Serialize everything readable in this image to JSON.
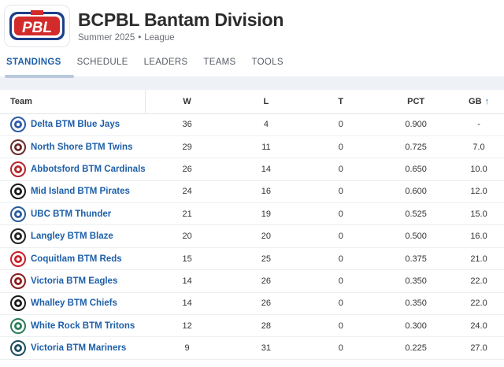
{
  "header": {
    "logo_text": "PBL",
    "title": "BCPBL Bantam Division",
    "season": "Summer 2025",
    "separator": "•",
    "type": "League"
  },
  "tabs": [
    {
      "label": "STANDINGS",
      "active": true
    },
    {
      "label": "SCHEDULE"
    },
    {
      "label": "LEADERS"
    },
    {
      "label": "TEAMS"
    },
    {
      "label": "TOOLS"
    }
  ],
  "table": {
    "headers": {
      "team": "Team",
      "w": "W",
      "l": "L",
      "t": "T",
      "pct": "PCT",
      "gb": "GB"
    },
    "sort_icon": "↑",
    "rows": [
      {
        "team": "Delta BTM Blue Jays",
        "w": "36",
        "l": "4",
        "t": "0",
        "pct": "0.900",
        "gb": "-",
        "icon": "blue-jay-icon",
        "color": "#2d5aa8"
      },
      {
        "team": "North Shore BTM Twins",
        "w": "29",
        "l": "11",
        "t": "0",
        "pct": "0.725",
        "gb": "7.0",
        "icon": "twins-icon",
        "color": "#6b2a2a"
      },
      {
        "team": "Abbotsford BTM Cardinals",
        "w": "26",
        "l": "14",
        "t": "0",
        "pct": "0.650",
        "gb": "10.0",
        "icon": "cardinals-icon",
        "color": "#b3262b"
      },
      {
        "team": "Mid Island BTM Pirates",
        "w": "24",
        "l": "16",
        "t": "0",
        "pct": "0.600",
        "gb": "12.0",
        "icon": "pirates-icon",
        "color": "#1a1a1a"
      },
      {
        "team": "UBC BTM Thunder",
        "w": "21",
        "l": "19",
        "t": "0",
        "pct": "0.525",
        "gb": "15.0",
        "icon": "thunder-icon",
        "color": "#2a5d9a"
      },
      {
        "team": "Langley BTM Blaze",
        "w": "20",
        "l": "20",
        "t": "0",
        "pct": "0.500",
        "gb": "16.0",
        "icon": "blaze-icon",
        "color": "#222222"
      },
      {
        "team": "Coquitlam BTM Reds",
        "w": "15",
        "l": "25",
        "t": "0",
        "pct": "0.375",
        "gb": "21.0",
        "icon": "reds-icon",
        "color": "#c8202a"
      },
      {
        "team": "Victoria BTM Eagles",
        "w": "14",
        "l": "26",
        "t": "0",
        "pct": "0.350",
        "gb": "22.0",
        "icon": "eagles-icon",
        "color": "#8a1d1d"
      },
      {
        "team": "Whalley BTM Chiefs",
        "w": "14",
        "l": "26",
        "t": "0",
        "pct": "0.350",
        "gb": "22.0",
        "icon": "chiefs-icon",
        "color": "#1b1b1b"
      },
      {
        "team": "White Rock BTM Tritons",
        "w": "12",
        "l": "28",
        "t": "0",
        "pct": "0.300",
        "gb": "24.0",
        "icon": "tritons-icon",
        "color": "#2c7d5a"
      },
      {
        "team": "Victoria BTM Mariners",
        "w": "9",
        "l": "31",
        "t": "0",
        "pct": "0.225",
        "gb": "27.0",
        "icon": "mariners-icon",
        "color": "#1f4f5e"
      }
    ]
  },
  "colors": {
    "accent": "#1d5fa8",
    "logo_red": "#d32b2b",
    "logo_blue": "#1d3f8a"
  }
}
